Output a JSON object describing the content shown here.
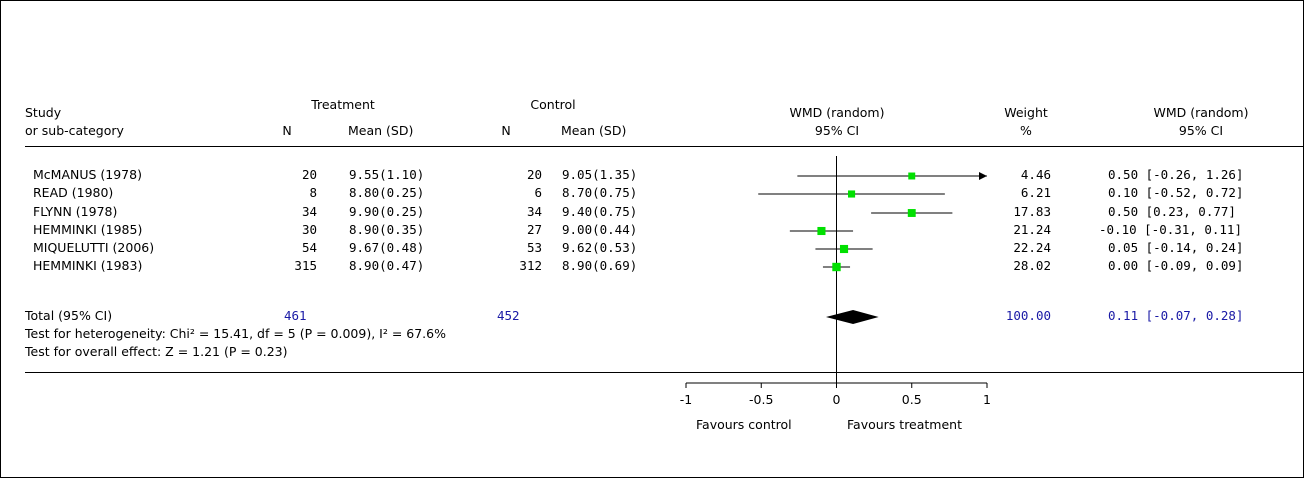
{
  "headers": {
    "study_line1": "Study",
    "study_line2": "or sub-category",
    "treatment": "Treatment",
    "control": "Control",
    "n": "N",
    "mean_sd": "Mean (SD)",
    "wmd_line1": "WMD (random)",
    "wmd_line2": "95% CI",
    "weight_line1": "Weight",
    "weight_line2": "%",
    "wmd_ci_line1": "WMD (random)",
    "wmd_ci_line2": "95% CI"
  },
  "studies": [
    {
      "name": "McMANUS (1978)",
      "t_n": "20",
      "t_mean_sd": "9.55(1.10)",
      "c_n": "20",
      "c_mean_sd": "9.05(1.35)",
      "weight": "4.46",
      "ci_text": "0.50 [-0.26, 1.26]"
    },
    {
      "name": "READ (1980)",
      "t_n": "8",
      "t_mean_sd": "8.80(0.25)",
      "c_n": "6",
      "c_mean_sd": "8.70(0.75)",
      "weight": "6.21",
      "ci_text": "0.10 [-0.52, 0.72]"
    },
    {
      "name": "FLYNN (1978)",
      "t_n": "34",
      "t_mean_sd": "9.90(0.25)",
      "c_n": "34",
      "c_mean_sd": "9.40(0.75)",
      "weight": "17.83",
      "ci_text": "0.50 [0.23, 0.77]"
    },
    {
      "name": "HEMMINKI (1985)",
      "t_n": "30",
      "t_mean_sd": "8.90(0.35)",
      "c_n": "27",
      "c_mean_sd": "9.00(0.44)",
      "weight": "21.24",
      "ci_text": "-0.10 [-0.31, 0.11]"
    },
    {
      "name": "MIQUELUTTI (2006)",
      "t_n": "54",
      "t_mean_sd": "9.67(0.48)",
      "c_n": "53",
      "c_mean_sd": "9.62(0.53)",
      "weight": "22.24",
      "ci_text": "0.05 [-0.14, 0.24]"
    },
    {
      "name": "HEMMINKI (1983)",
      "t_n": "315",
      "t_mean_sd": "8.90(0.47)",
      "c_n": "312",
      "c_mean_sd": "8.90(0.69)",
      "weight": "28.02",
      "ci_text": "0.00 [-0.09, 0.09]"
    }
  ],
  "total": {
    "label": "Total (95% CI)",
    "t_n": "461",
    "c_n": "452",
    "weight": "100.00",
    "ci_text": "0.11 [-0.07, 0.28]"
  },
  "heterogeneity_text": "Test for heterogeneity: Chi² = 15.41, df = 5 (P = 0.009), I² = 67.6%",
  "overall_effect_text": "Test for overall effect: Z = 1.21 (P = 0.23)",
  "axis": {
    "favours_left": "Favours control",
    "favours_right": "Favours treatment"
  },
  "colors": {
    "marker": "#00e000",
    "summary": "#000000",
    "totals_text": "#1a1aa6"
  },
  "chart_data": {
    "type": "forest",
    "xlim": [
      -1,
      1
    ],
    "ticks": [
      -1,
      -0.5,
      0,
      0.5,
      1
    ],
    "tick_labels": [
      "-1",
      "-0.5",
      "0",
      "0.5",
      "1"
    ],
    "reference_line": 0,
    "studies": [
      {
        "label": "McMANUS (1978)",
        "estimate": 0.5,
        "lower": -0.26,
        "upper": 1.26,
        "weight": 4.46
      },
      {
        "label": "READ (1980)",
        "estimate": 0.1,
        "lower": -0.52,
        "upper": 0.72,
        "weight": 6.21
      },
      {
        "label": "FLYNN (1978)",
        "estimate": 0.5,
        "lower": 0.23,
        "upper": 0.77,
        "weight": 17.83
      },
      {
        "label": "HEMMINKI (1985)",
        "estimate": -0.1,
        "lower": -0.31,
        "upper": 0.11,
        "weight": 21.24
      },
      {
        "label": "MIQUELUTTI (2006)",
        "estimate": 0.05,
        "lower": -0.14,
        "upper": 0.24,
        "weight": 22.24
      },
      {
        "label": "HEMMINKI (1983)",
        "estimate": 0.0,
        "lower": -0.09,
        "upper": 0.09,
        "weight": 28.02
      }
    ],
    "summary": {
      "label": "Total (95% CI)",
      "estimate": 0.11,
      "lower": -0.07,
      "upper": 0.28,
      "weight": 100.0
    }
  }
}
